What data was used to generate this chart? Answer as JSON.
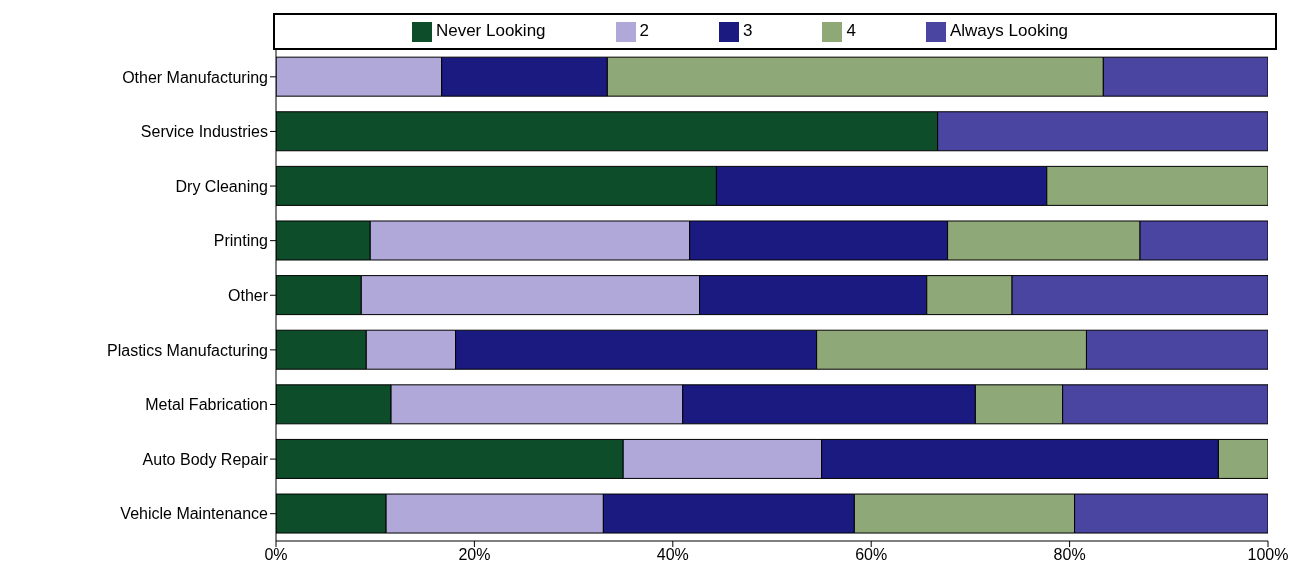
{
  "chart_data": {
    "type": "bar",
    "orientation": "horizontal",
    "stacked": true,
    "categories": [
      "Other Manufacturing",
      "Service Industries",
      "Dry Cleaning",
      "Printing",
      "Other",
      "Plastics Manufacturing",
      "Metal Fabrication",
      "Auto Body Repair",
      "Vehicle Maintenance"
    ],
    "series": [
      {
        "name": "Never Looking",
        "color": "#0d4d2a",
        "values": [
          0,
          66.7,
          44.4,
          9.5,
          8.6,
          9.1,
          11.6,
          35,
          11.1
        ]
      },
      {
        "name": "2",
        "color": "#b0a8d8",
        "values": [
          16.7,
          0,
          0,
          32.2,
          34.1,
          9,
          29.4,
          20,
          21.9
        ]
      },
      {
        "name": "3",
        "color": "#1a1a80",
        "values": [
          16.7,
          0,
          33.3,
          26,
          22.9,
          36.4,
          29.5,
          40,
          25.3
        ]
      },
      {
        "name": "4",
        "color": "#8fa878",
        "values": [
          50,
          0,
          22.3,
          19.4,
          8.6,
          27.2,
          8.8,
          5,
          22.2
        ]
      },
      {
        "name": "Always Looking",
        "color": "#4a45a0",
        "values": [
          16.6,
          33.3,
          0,
          12.9,
          25.8,
          18.3,
          20.7,
          0,
          19.5
        ]
      }
    ],
    "xlim": [
      0,
      100
    ],
    "xticks": [
      {
        "value": 0,
        "label": "0%"
      },
      {
        "value": 20,
        "label": "20%"
      },
      {
        "value": 40,
        "label": "40%"
      },
      {
        "value": 60,
        "label": "60%"
      },
      {
        "value": 80,
        "label": "80%"
      },
      {
        "value": 100,
        "label": "100%"
      }
    ],
    "legend": "top",
    "grid": false
  }
}
